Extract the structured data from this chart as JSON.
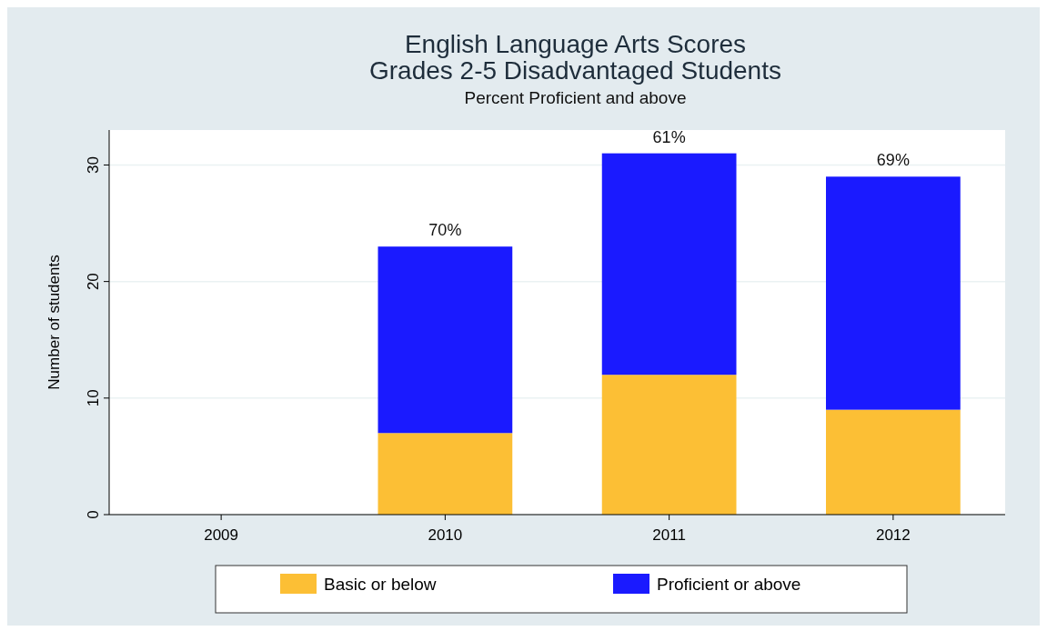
{
  "chart_data": {
    "type": "bar",
    "title": "English Language Arts Scores\nGrades 2-5 Disadvantaged Students",
    "subtitle": "Percent Proficient and above",
    "ylabel": "Number of students",
    "categories": [
      "2009",
      "2010",
      "2011",
      "2012"
    ],
    "stacked": true,
    "series": [
      {
        "name": "Basic or below",
        "color": "#fcbf35",
        "values": [
          null,
          7,
          12,
          9
        ]
      },
      {
        "name": "Proficient or above",
        "color": "#1a1aff",
        "values": [
          null,
          16,
          19,
          20
        ]
      }
    ],
    "ylim": [
      0,
      33
    ],
    "yticks": [
      0,
      10,
      20,
      30
    ],
    "grid": "y",
    "legend": "bottom",
    "annotations": [
      {
        "text": "70%",
        "x": "2010",
        "y": 23
      },
      {
        "text": "61%",
        "x": "2011",
        "y": 31
      },
      {
        "text": "69%",
        "x": "2012",
        "y": 29
      }
    ]
  }
}
